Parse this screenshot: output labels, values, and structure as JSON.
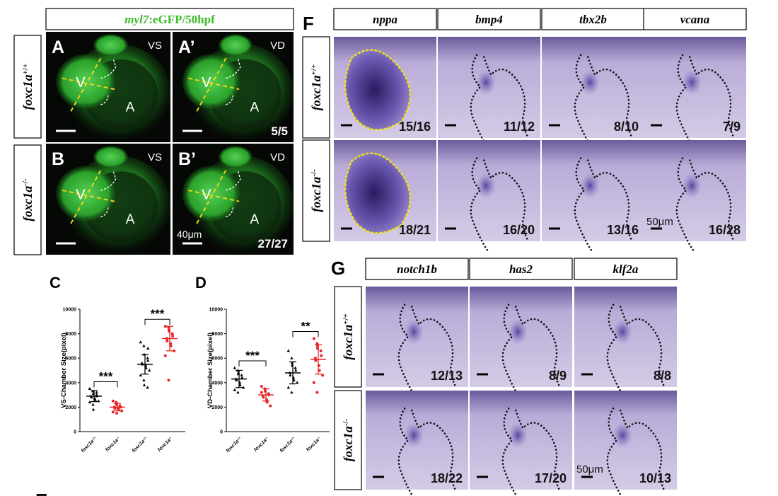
{
  "figure": {
    "panel_a_b": {
      "header": {
        "gene": "myl7",
        "rest": ":eGFP/50hpf"
      },
      "row_labels": [
        {
          "gene": "foxc1a",
          "genotype": "+/+"
        },
        {
          "gene": "foxc1a",
          "genotype": "-/-"
        }
      ],
      "images": [
        {
          "letter": "A",
          "view": "VS",
          "ventricle": "V",
          "atrium": "A"
        },
        {
          "letter": "A’",
          "view": "VD",
          "ventricle": "V",
          "atrium": "A",
          "count": "5/5"
        },
        {
          "letter": "B",
          "view": "VS",
          "ventricle": "V",
          "atrium": "A"
        },
        {
          "letter": "B’",
          "view": "VD",
          "ventricle": "V",
          "atrium": "A",
          "count": "27/27",
          "scale": "40μm"
        }
      ]
    },
    "panel_f": {
      "letter": "F",
      "genes": [
        "nppa",
        "bmp4",
        "tbx2b",
        "vcana"
      ],
      "row_labels": [
        {
          "gene": "foxc1a",
          "genotype": "+/+"
        },
        {
          "gene": "foxc1a",
          "genotype": "-/-"
        }
      ],
      "counts": [
        [
          "15/16",
          "11/12",
          "8/10",
          "7/9"
        ],
        [
          "18/21",
          "16/20",
          "13/16",
          "16/28"
        ]
      ],
      "scale": "50μm"
    },
    "panel_g": {
      "letter": "G",
      "genes": [
        "notch1b",
        "has2",
        "klf2a"
      ],
      "row_labels": [
        {
          "gene": "foxc1a",
          "genotype": "+/+"
        },
        {
          "gene": "foxc1a",
          "genotype": "-/-"
        }
      ],
      "counts": [
        [
          "12/13",
          "8/9",
          "8/8"
        ],
        [
          "18/22",
          "17/20",
          "10/13"
        ]
      ],
      "scale": "50μm"
    },
    "panel_e_letter": "E"
  },
  "chart_data": [
    {
      "type": "scatter",
      "letter": "C",
      "y_label": "VS-Chamber Size(pixel)",
      "ylim": [
        0,
        10000
      ],
      "yticks": [
        0,
        2000,
        4000,
        6000,
        8000,
        10000
      ],
      "annotations": [
        "***",
        "***"
      ],
      "groups": [
        {
          "category": {
            "gene": "foxc1a",
            "genotype": "+/+"
          },
          "color": "#000000",
          "marker": "triangle",
          "mean": 2900,
          "sd": 450,
          "values": [
            3500,
            3300,
            3100,
            3000,
            2900,
            2900,
            2800,
            2700,
            2600,
            2500,
            2400,
            2200,
            1800,
            3200
          ]
        },
        {
          "category": {
            "gene": "foxc1a",
            "genotype": "-/-"
          },
          "color": "#e8262a",
          "marker": "circle",
          "mean": 2000,
          "sd": 300,
          "values": [
            2500,
            2300,
            2200,
            2100,
            2000,
            2000,
            1900,
            1900,
            1800,
            1700,
            1600,
            2400,
            1500,
            2100
          ]
        },
        {
          "category": {
            "gene": "foxc1a",
            "genotype": "+/+"
          },
          "color": "#000000",
          "marker": "triangle",
          "mean": 5500,
          "sd": 800,
          "values": [
            7300,
            7000,
            6300,
            6000,
            5800,
            5600,
            5500,
            5400,
            5200,
            5000,
            4600,
            4200,
            3800,
            3600,
            6800
          ]
        },
        {
          "category": {
            "gene": "foxc1a",
            "genotype": "-/-"
          },
          "color": "#e8262a",
          "marker": "circle",
          "mean": 7600,
          "sd": 1000,
          "values": [
            8600,
            8500,
            8200,
            8000,
            7800,
            7600,
            7400,
            7200,
            7000,
            6600,
            6200,
            4200,
            8300
          ]
        }
      ]
    },
    {
      "type": "scatter",
      "letter": "D",
      "y_label": "VD-Chamber Size(pixel)",
      "ylim": [
        0,
        10000
      ],
      "yticks": [
        0,
        2000,
        4000,
        6000,
        8000,
        10000
      ],
      "annotations": [
        "***",
        "**"
      ],
      "groups": [
        {
          "category": {
            "gene": "foxc1a",
            "genotype": "+/+"
          },
          "color": "#000000",
          "marker": "triangle",
          "mean": 4300,
          "sd": 700,
          "values": [
            5200,
            5000,
            4800,
            4600,
            4400,
            4300,
            4200,
            4000,
            3800,
            3600,
            3400,
            3200,
            4700
          ]
        },
        {
          "category": {
            "gene": "foxc1a",
            "genotype": "-/-"
          },
          "color": "#e8262a",
          "marker": "circle",
          "mean": 3000,
          "sd": 500,
          "values": [
            3700,
            3500,
            3300,
            3100,
            3000,
            2900,
            2800,
            2600,
            2400,
            2100,
            3200
          ]
        },
        {
          "category": {
            "gene": "foxc1a",
            "genotype": "+/+"
          },
          "color": "#000000",
          "marker": "triangle",
          "mean": 4800,
          "sd": 900,
          "values": [
            6600,
            6000,
            5600,
            5200,
            5000,
            4800,
            4600,
            4400,
            4200,
            4000,
            3600,
            3200,
            5400
          ]
        },
        {
          "category": {
            "gene": "foxc1a",
            "genotype": "-/-"
          },
          "color": "#e8262a",
          "marker": "circle",
          "mean": 5900,
          "sd": 1200,
          "values": [
            7600,
            7200,
            7000,
            6600,
            6200,
            6000,
            5800,
            5400,
            5000,
            4600,
            4000,
            3200,
            6800
          ]
        }
      ]
    }
  ]
}
